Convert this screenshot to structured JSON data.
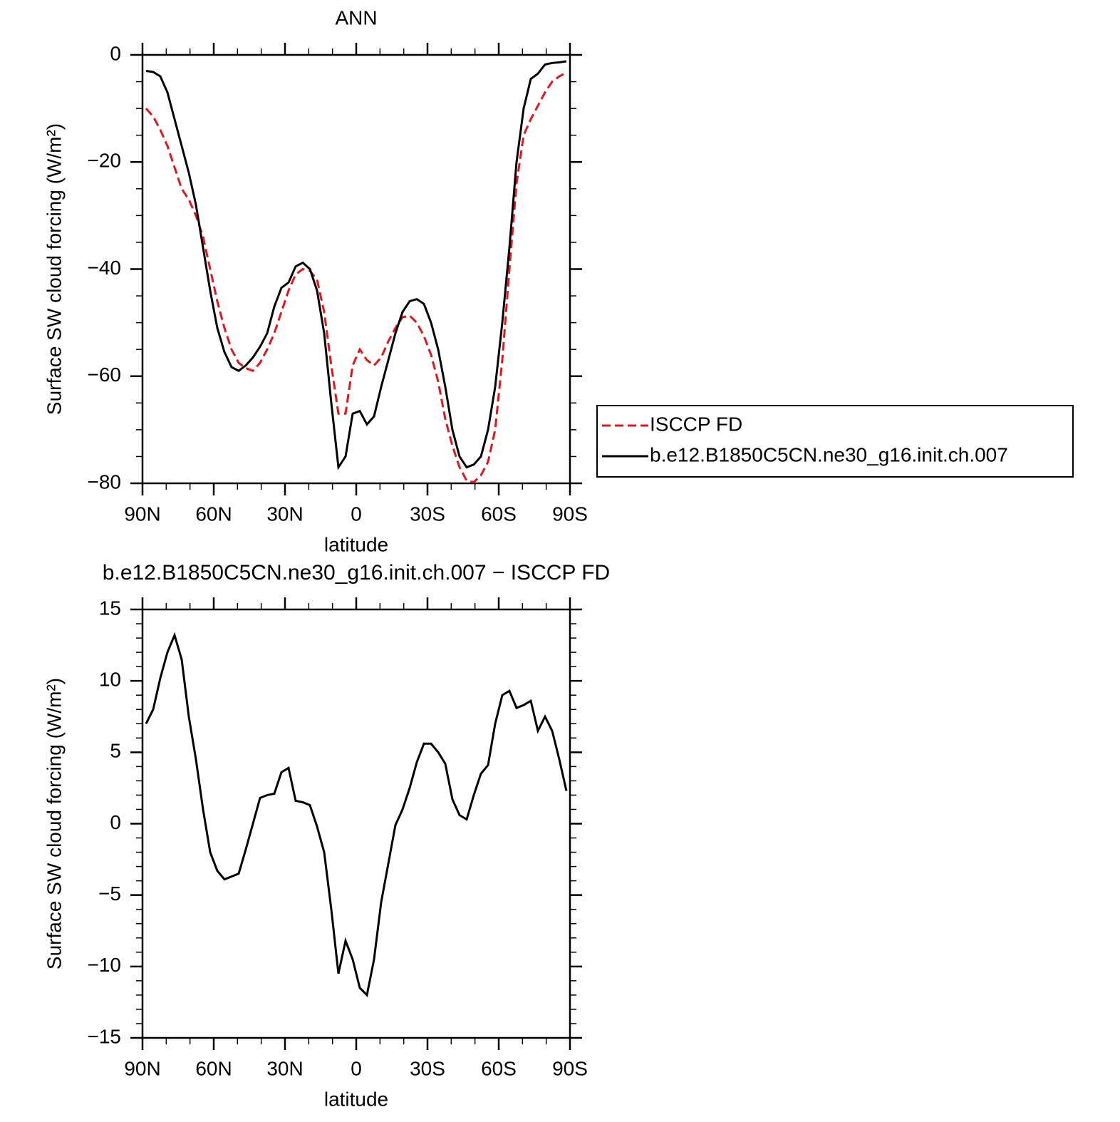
{
  "chart_data": [
    {
      "type": "line",
      "title": "ANN",
      "xlabel": "latitude",
      "ylabel": "Surface SW cloud forcing (W/m²)",
      "x": [
        88.5,
        85.5,
        82.5,
        79.5,
        76.5,
        73.5,
        70.5,
        67.5,
        64.5,
        61.5,
        58.5,
        55.5,
        52.5,
        49.5,
        46.5,
        43.5,
        40.5,
        37.5,
        34.5,
        31.5,
        28.5,
        25.5,
        22.5,
        19.5,
        16.5,
        13.5,
        10.5,
        7.5,
        4.5,
        1.5,
        -1.5,
        -4.5,
        -7.5,
        -10.5,
        -13.5,
        -16.5,
        -19.5,
        -22.5,
        -25.5,
        -28.5,
        -31.5,
        -34.5,
        -37.5,
        -40.5,
        -43.5,
        -46.5,
        -49.5,
        -52.5,
        -55.5,
        -58.5,
        -61.5,
        -64.5,
        -67.5,
        -70.5,
        -73.5,
        -76.5,
        -79.5,
        -82.5,
        -85.5,
        -88.5
      ],
      "series": [
        {
          "name": "ISCCP FD",
          "color": "#e8141c",
          "linestyle": "dashed",
          "values": [
            -10,
            -11.5,
            -14,
            -17,
            -21,
            -25,
            -27,
            -30,
            -34,
            -40,
            -46,
            -51,
            -55,
            -57.5,
            -58.5,
            -59,
            -57.5,
            -55,
            -52,
            -48,
            -44,
            -41,
            -40,
            -40.3,
            -42,
            -48,
            -58,
            -67,
            -67,
            -58,
            -55,
            -57,
            -58,
            -56.5,
            -53.5,
            -51,
            -49,
            -48.7,
            -50,
            -52.5,
            -56,
            -61,
            -68,
            -73,
            -77,
            -79.5,
            -79.8,
            -78.5,
            -76,
            -70,
            -57,
            -40,
            -24,
            -15,
            -12,
            -9.5,
            -7,
            -5,
            -4,
            -3.3
          ]
        },
        {
          "name": "b.e12.B1850C5CN.ne30_g16.init.ch.007",
          "color": "#000000",
          "linestyle": "solid",
          "values": [
            -3,
            -3.2,
            -4,
            -7,
            -12,
            -17,
            -22,
            -28,
            -36,
            -44,
            -51,
            -55.5,
            -58.3,
            -59,
            -58,
            -56.5,
            -54.5,
            -52,
            -47,
            -43.5,
            -42.5,
            -39.5,
            -38.8,
            -40,
            -44,
            -52,
            -65,
            -77,
            -75,
            -67,
            -66.5,
            -69,
            -67.5,
            -62,
            -57,
            -52,
            -48,
            -46,
            -45.6,
            -46.5,
            -50,
            -55,
            -62,
            -70,
            -75,
            -77,
            -76.5,
            -75,
            -70,
            -62,
            -50,
            -36,
            -20,
            -10,
            -4.5,
            -3.5,
            -1.8,
            -1.5,
            -1.4,
            -1.2
          ]
        }
      ],
      "xlim": [
        90,
        -90
      ],
      "xticks": [
        {
          "value": 90,
          "label": "90N"
        },
        {
          "value": 60,
          "label": "60N"
        },
        {
          "value": 30,
          "label": "30N"
        },
        0,
        {
          "value": -30,
          "label": "30S"
        },
        {
          "value": -60,
          "label": "60S"
        },
        {
          "value": -90,
          "label": "90S"
        }
      ],
      "xminorticks": [
        80,
        70,
        50,
        40,
        20,
        10,
        -10,
        -20,
        -40,
        -50,
        -70,
        -80
      ],
      "ylim": [
        -80,
        0
      ],
      "yticks": [
        {
          "value": 0,
          "label": "0"
        },
        {
          "value": -20,
          "label": "−20"
        },
        {
          "value": -40,
          "label": "−40"
        },
        {
          "value": -60,
          "label": "−60"
        },
        {
          "value": -80,
          "label": "−80"
        }
      ],
      "yminorticks": [
        -75,
        -70,
        -65,
        -55,
        -50,
        -45,
        -35,
        -30,
        -25,
        -15,
        -10,
        -5
      ],
      "legend": "right"
    },
    {
      "type": "line",
      "title": "b.e12.B1850C5CN.ne30_g16.init.ch.007 − ISCCP FD",
      "xlabel": "latitude",
      "ylabel": "Surface SW cloud forcing (W/m²)",
      "x": [
        88.5,
        85.5,
        82.5,
        79.5,
        76.5,
        73.5,
        70.5,
        67.5,
        64.5,
        61.5,
        58.5,
        55.5,
        52.5,
        49.5,
        46.5,
        43.5,
        40.5,
        37.5,
        34.5,
        31.5,
        28.5,
        25.5,
        22.5,
        19.5,
        16.5,
        13.5,
        10.5,
        7.5,
        4.5,
        1.5,
        -1.5,
        -4.5,
        -7.5,
        -10.5,
        -13.5,
        -16.5,
        -19.5,
        -22.5,
        -25.5,
        -28.5,
        -31.5,
        -34.5,
        -37.5,
        -40.5,
        -43.5,
        -46.5,
        -49.5,
        -52.5,
        -55.5,
        -58.5,
        -61.5,
        -64.5,
        -67.5,
        -70.5,
        -73.5,
        -76.5,
        -79.5,
        -82.5,
        -85.5,
        -88.5
      ],
      "color": "#000000",
      "values": [
        7,
        8,
        10.2,
        12,
        13.2,
        11.5,
        7.5,
        4.5,
        1,
        -2,
        -3.3,
        -3.9,
        -3.7,
        -3.5,
        -1.8,
        0,
        1.8,
        2,
        2.1,
        3.6,
        3.9,
        1.6,
        1.5,
        1.3,
        -0.2,
        -2,
        -6,
        -10.5,
        -8.2,
        -9.5,
        -11.5,
        -12,
        -9.5,
        -5.5,
        -2.8,
        -0.1,
        1,
        2.5,
        4.3,
        5.6,
        5.6,
        5,
        4.2,
        1.7,
        0.6,
        0.3,
        2,
        3.5,
        4.1,
        7,
        9,
        9.3,
        8.1,
        8.3,
        8.6,
        6.5,
        7.5,
        6.5,
        4.5,
        2.3
      ],
      "xlim": [
        90,
        -90
      ],
      "xticks": [
        {
          "value": 90,
          "label": "90N"
        },
        {
          "value": 60,
          "label": "60N"
        },
        {
          "value": 30,
          "label": "30N"
        },
        0,
        {
          "value": -30,
          "label": "30S"
        },
        {
          "value": -60,
          "label": "60S"
        },
        {
          "value": -90,
          "label": "90S"
        }
      ],
      "xminorticks": [
        80,
        70,
        50,
        40,
        20,
        10,
        -10,
        -20,
        -40,
        -50,
        -70,
        -80
      ],
      "ylim": [
        -15,
        15
      ],
      "yticks": [
        15,
        10,
        5,
        0,
        {
          "value": -5,
          "label": "−5"
        },
        {
          "value": -10,
          "label": "−10"
        },
        {
          "value": -15,
          "label": "−15"
        }
      ],
      "yminorticks": [
        -14,
        -13,
        -12,
        -11,
        -9,
        -8,
        -7,
        -6,
        -4,
        -3,
        -2,
        -1,
        1,
        2,
        3,
        4,
        6,
        7,
        8,
        9,
        11,
        12,
        13,
        14
      ]
    }
  ]
}
